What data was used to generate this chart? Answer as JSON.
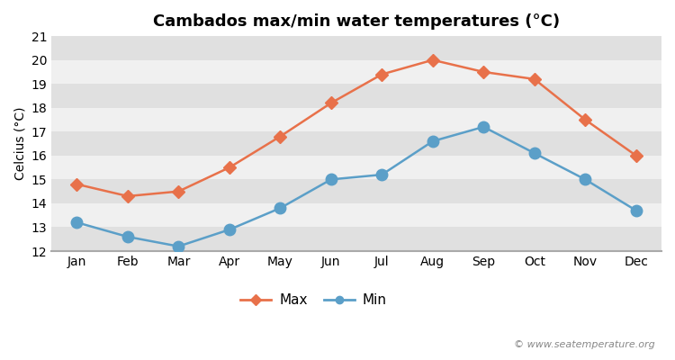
{
  "title": "Cambados max/min water temperatures (°C)",
  "ylabel": "Celcius (°C)",
  "months": [
    "Jan",
    "Feb",
    "Mar",
    "Apr",
    "May",
    "Jun",
    "Jul",
    "Aug",
    "Sep",
    "Oct",
    "Nov",
    "Dec"
  ],
  "max_values": [
    14.8,
    14.3,
    14.5,
    15.5,
    16.8,
    18.2,
    19.4,
    20.0,
    19.5,
    19.2,
    17.5,
    16.0
  ],
  "min_values": [
    13.2,
    12.6,
    12.2,
    12.9,
    13.8,
    15.0,
    15.2,
    16.6,
    17.2,
    16.1,
    15.0,
    13.7
  ],
  "max_color": "#e8714a",
  "min_color": "#5b9fc8",
  "fig_bg_color": "#ffffff",
  "stripe_light": "#f0f0f0",
  "stripe_dark": "#e0e0e0",
  "bottom_bar_color": "#c8c8c8",
  "ylim": [
    12,
    21
  ],
  "yticks": [
    12,
    13,
    14,
    15,
    16,
    17,
    18,
    19,
    20,
    21
  ],
  "legend_max": "Max",
  "legend_min": "Min",
  "watermark": "© www.seatemperature.org",
  "title_fontsize": 13,
  "axis_fontsize": 10,
  "tick_fontsize": 10,
  "legend_fontsize": 11,
  "watermark_fontsize": 8,
  "marker_size_max": 7,
  "marker_size_min": 9,
  "line_width": 1.8
}
